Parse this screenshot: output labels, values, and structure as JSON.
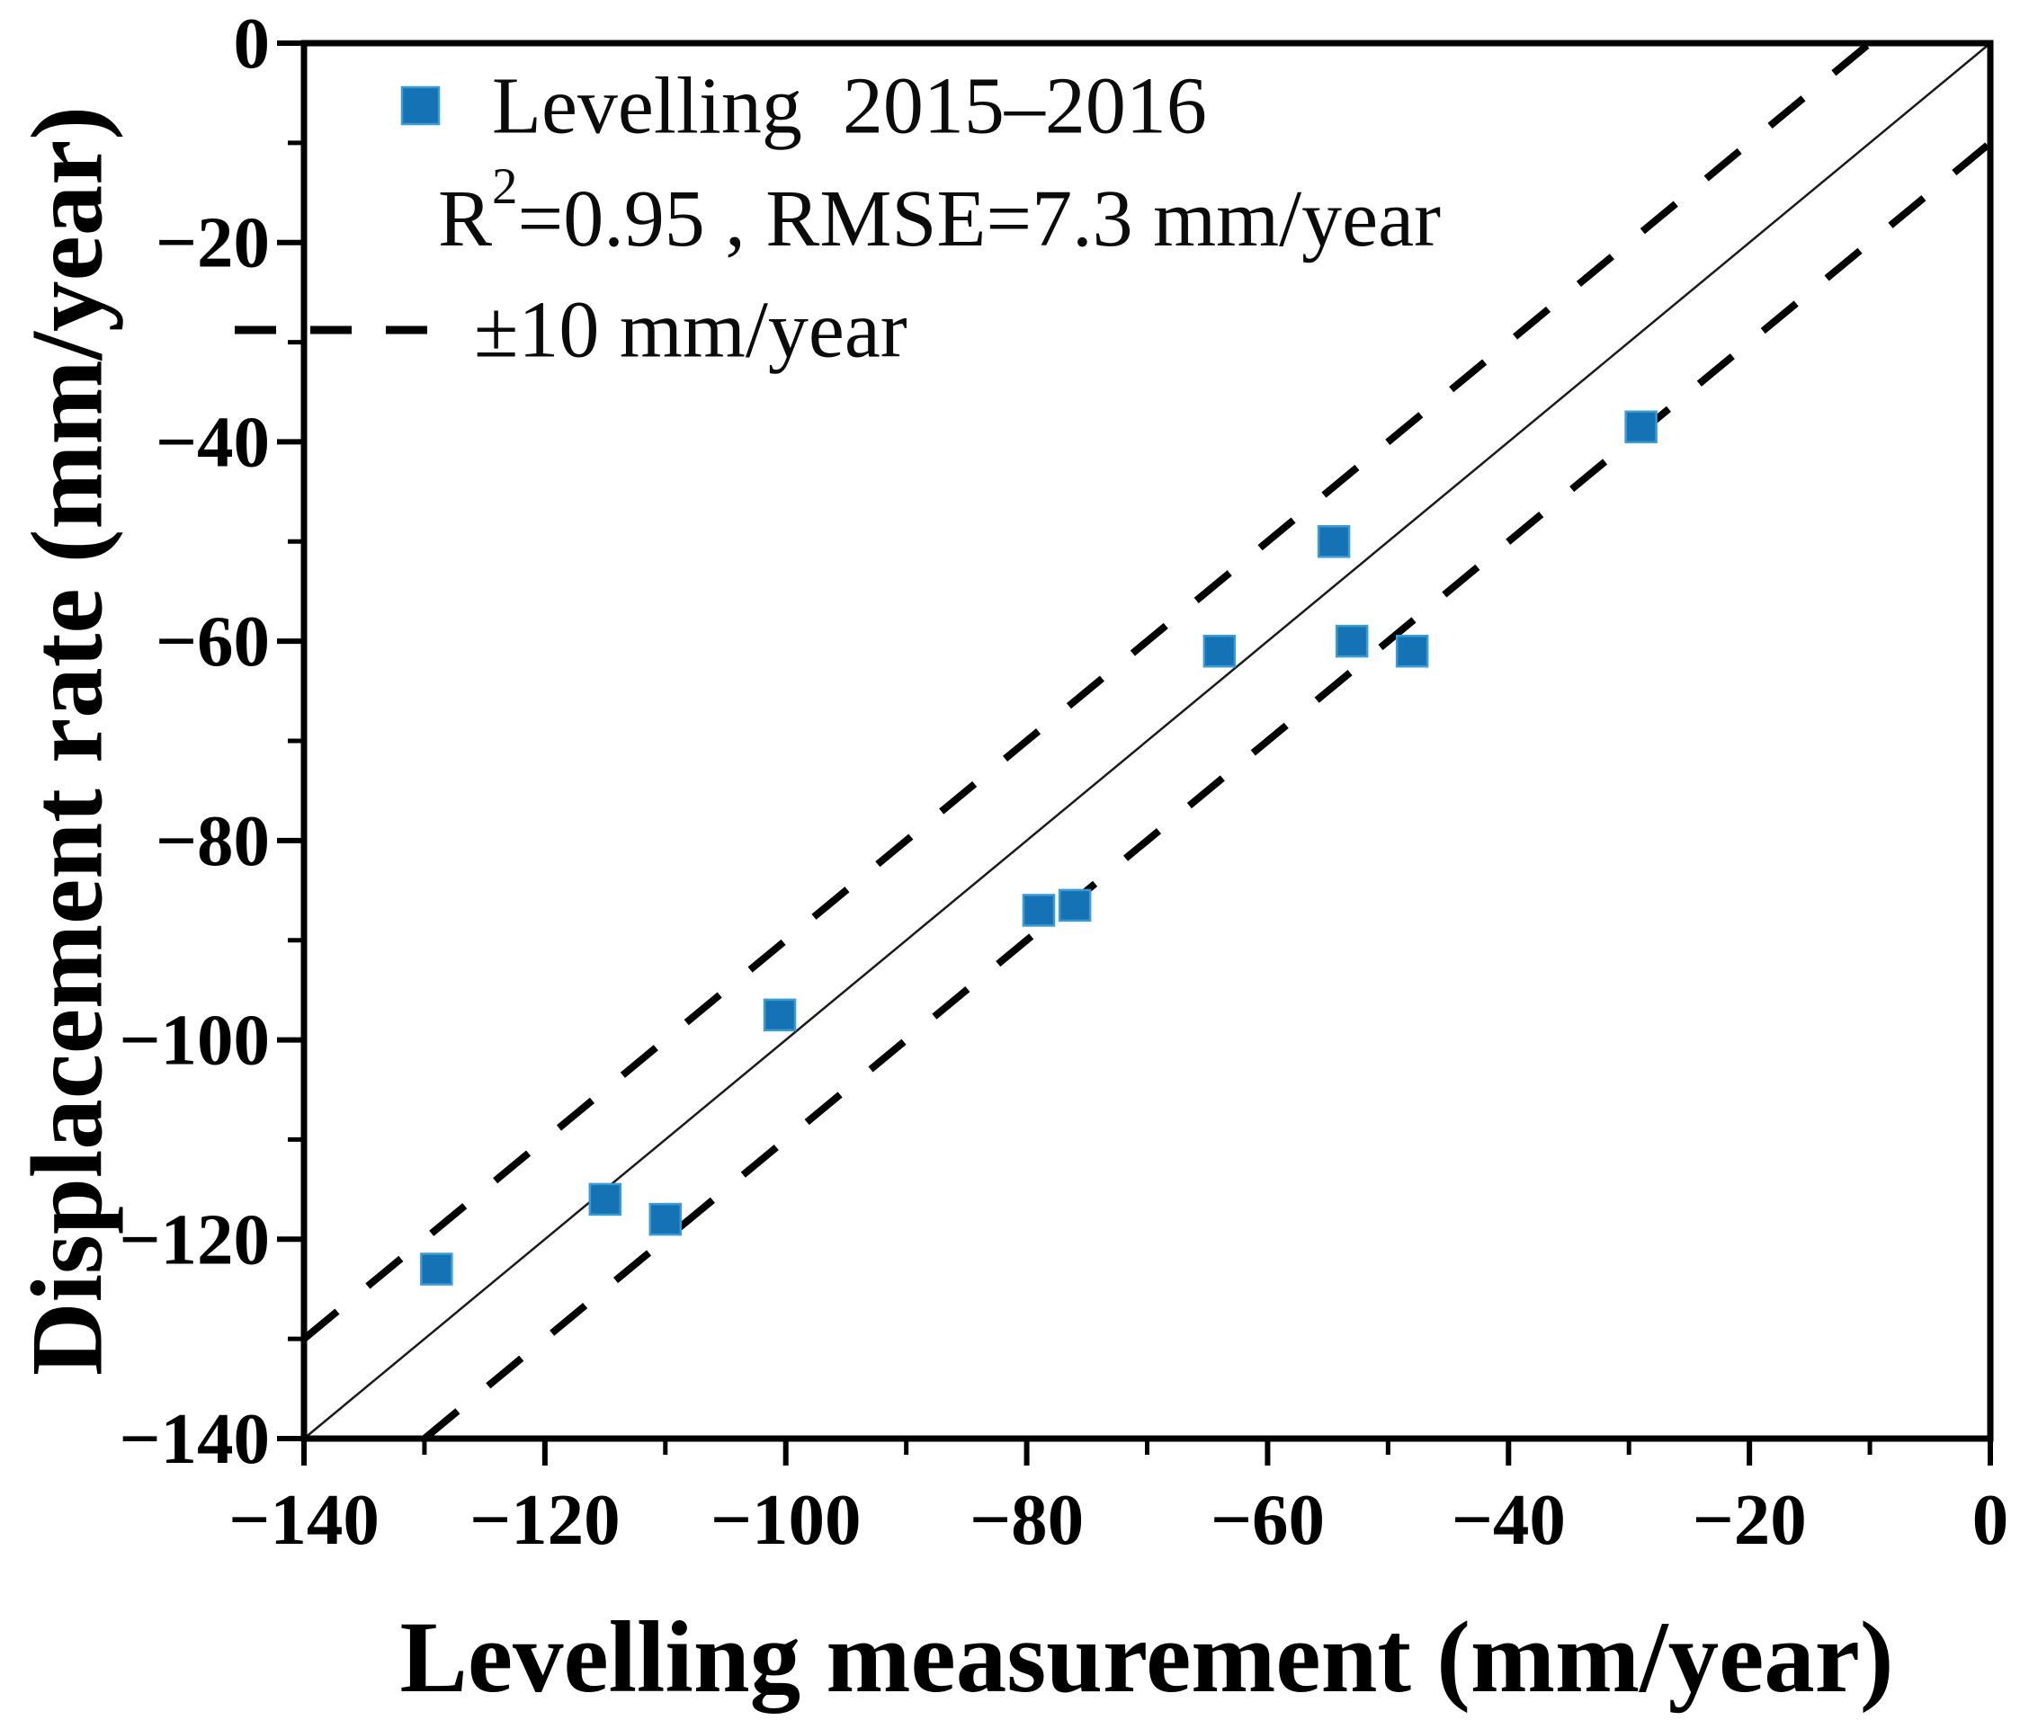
{
  "figure": {
    "background": "#ffffff",
    "text_color": "#000000"
  },
  "chart_data": {
    "type": "scatter",
    "title": "",
    "xlabel": "Levelling measurement (mm/year)",
    "ylabel": "Displacement rate (mm/year)",
    "xlim": [
      -140,
      0
    ],
    "ylim": [
      -140,
      0
    ],
    "grid": false,
    "x_ticks_major": [
      -140,
      -120,
      -100,
      -80,
      -60,
      -40,
      -20,
      0
    ],
    "x_tick_labels": [
      "−140",
      "−120",
      "−100",
      "−80",
      "−60",
      "−40",
      "−20",
      "0"
    ],
    "x_ticks_minor": [
      -130,
      -110,
      -90,
      -70,
      -50,
      -30,
      -10
    ],
    "y_ticks_major": [
      0,
      -20,
      -40,
      -60,
      -80,
      -100,
      -120,
      -140
    ],
    "y_tick_labels": [
      "0",
      "−20",
      "−40",
      "−60",
      "−80",
      "−100",
      "−120",
      "−140"
    ],
    "y_ticks_minor": [
      -10,
      -30,
      -50,
      -70,
      -90,
      -110,
      -130
    ],
    "series": [
      {
        "name": "Levelling 2015–2016",
        "marker": "square",
        "color": "#1573b5",
        "edge_color": "#3d9bd4",
        "points": [
          [
            -129,
            -123
          ],
          [
            -115,
            -116
          ],
          [
            -110,
            -118
          ],
          [
            -100.5,
            -97.5
          ],
          [
            -79,
            -87
          ],
          [
            -76,
            -86.5
          ],
          [
            -64,
            -61
          ],
          [
            -54.5,
            -50
          ],
          [
            -53,
            -60
          ],
          [
            -48,
            -61
          ],
          [
            -29,
            -38.5
          ]
        ]
      }
    ],
    "reference_lines": [
      {
        "name": "identity-line",
        "style": "solid",
        "color": "#1a1a1a",
        "from": [
          -140,
          -140
        ],
        "to": [
          0,
          0
        ]
      },
      {
        "name": "upper-tolerance-line",
        "style": "dashed",
        "color": "#000000",
        "from": [
          -140,
          -130
        ],
        "to": [
          -10,
          0
        ]
      },
      {
        "name": "lower-tolerance-line",
        "style": "dashed",
        "color": "#000000",
        "from": [
          -130,
          -140
        ],
        "to": [
          0,
          -10
        ]
      }
    ],
    "legend": {
      "position": "top-left",
      "series_label": "Levelling  2015–2016",
      "stats_prefix": "R",
      "stats_sup": "2",
      "stats_rest": "=0.95 , RMSE=7.3 mm/year",
      "tolerance_label": "±10 mm/year"
    }
  }
}
